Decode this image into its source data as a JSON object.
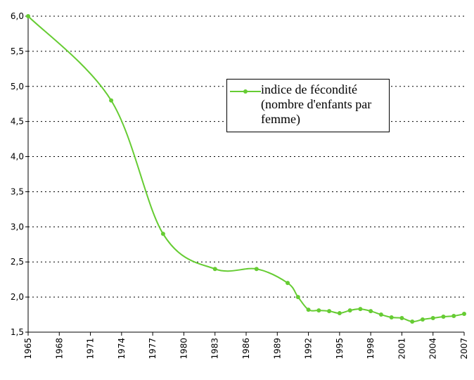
{
  "chart_data": {
    "type": "line",
    "x": [
      1965,
      1973,
      1978,
      1983,
      1987,
      1990,
      1991,
      1992,
      1993,
      1994,
      1995,
      1996,
      1997,
      1998,
      1999,
      2000,
      2001,
      2002,
      2003,
      2004,
      2005,
      2006,
      2007
    ],
    "series": [
      {
        "name": "indice de fécondité (nombre d'enfants par femme)",
        "color": "#66cc33",
        "values": [
          6.0,
          4.8,
          2.9,
          2.4,
          2.4,
          2.2,
          2.0,
          1.82,
          1.81,
          1.8,
          1.77,
          1.81,
          1.83,
          1.8,
          1.75,
          1.71,
          1.7,
          1.65,
          1.68,
          1.7,
          1.72,
          1.73,
          1.76
        ]
      }
    ],
    "xlim": [
      1965,
      2007
    ],
    "xticks": [
      1965,
      1968,
      1971,
      1974,
      1977,
      1980,
      1983,
      1986,
      1989,
      1992,
      1995,
      1998,
      2001,
      2004,
      2007
    ],
    "ylim": [
      1.5,
      6.0
    ],
    "yticks": [
      {
        "value": 1.5,
        "label": "1,5"
      },
      {
        "value": 2.0,
        "label": "2,0"
      },
      {
        "value": 2.5,
        "label": "2,5"
      },
      {
        "value": 3.0,
        "label": "3,0"
      },
      {
        "value": 3.5,
        "label": "3,5"
      },
      {
        "value": 4.0,
        "label": "4,0"
      },
      {
        "value": 4.5,
        "label": "4,5"
      },
      {
        "value": 5.0,
        "label": "5,0"
      },
      {
        "value": 5.5,
        "label": "5,5"
      },
      {
        "value": 6.0,
        "label": "6,0"
      }
    ],
    "grid": true
  }
}
